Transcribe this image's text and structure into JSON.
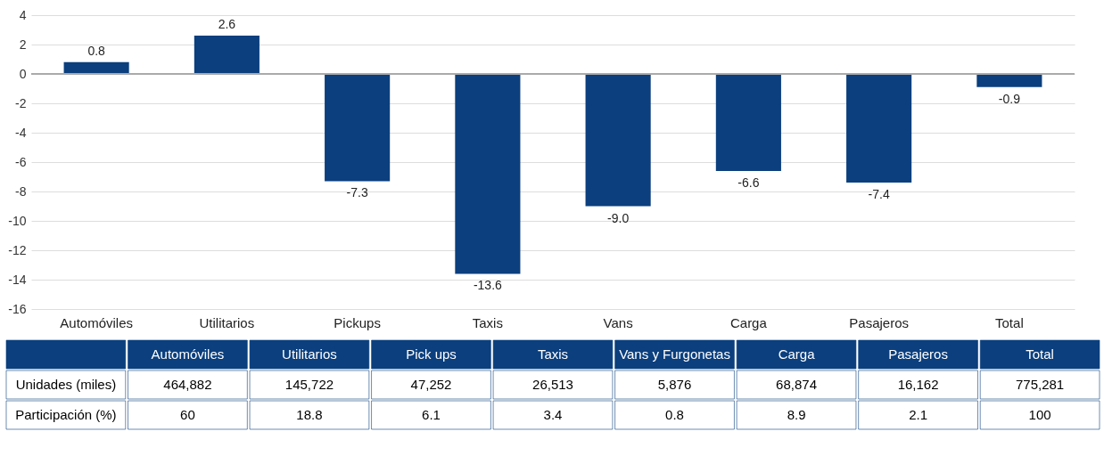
{
  "chart_data": [
    {
      "type": "bar",
      "categories": [
        "Automóviles",
        "Utilitarios",
        "Pickups",
        "Taxis",
        "Vans",
        "Carga",
        "Pasajeros",
        "Total"
      ],
      "values": [
        0.8,
        2.6,
        -7.3,
        -13.6,
        -9.0,
        -6.6,
        -7.4,
        -0.9
      ],
      "value_labels": [
        "0.8",
        "2.6",
        "-7.3",
        "-13.6",
        "-9.0",
        "-6.6",
        "-7.4",
        "-0.9"
      ],
      "color": "#0b3f7e",
      "ylim": [
        -16,
        4
      ],
      "yticks": [
        -16,
        -14,
        -12,
        -10,
        -8,
        -6,
        -4,
        -2,
        0,
        2,
        4
      ],
      "grid": "y"
    },
    {
      "type": "other",
      "categories": [
        "Automóviles",
        "Utilitarios",
        "Pick ups",
        "Taxis",
        "Vans y Furgonetas",
        "Carga",
        "Pasajeros",
        "Total"
      ],
      "series": [
        {
          "name": "Unidades (miles)",
          "values": [
            464882,
            145722,
            47252,
            26513,
            5876,
            68874,
            16162,
            775281
          ],
          "value_labels": [
            "464,882",
            "145,722",
            "47,252",
            "26,513",
            "5,876",
            "68,874",
            "16,162",
            "775,281"
          ]
        },
        {
          "name": "Participación (%)",
          "values": [
            60,
            18.8,
            6.1,
            3.4,
            0.8,
            8.9,
            2.1,
            100
          ],
          "value_labels": [
            "60",
            "18.8",
            "6.1",
            "3.4",
            "0.8",
            "8.9",
            "2.1",
            "100"
          ]
        }
      ]
    }
  ]
}
